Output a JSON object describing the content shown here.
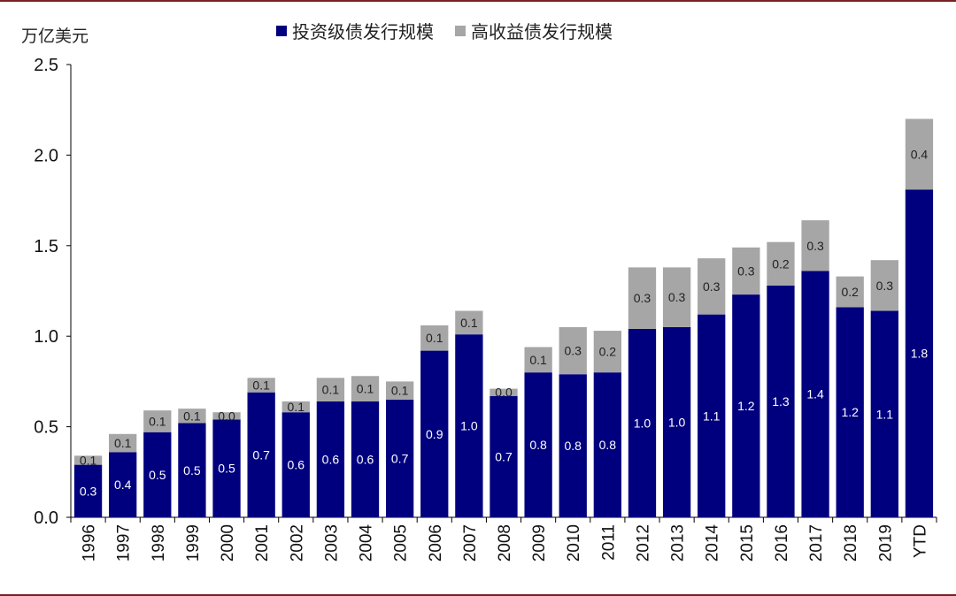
{
  "chart_data": {
    "type": "bar",
    "stacked": true,
    "unit_label": "万亿美元",
    "categories": [
      "1996",
      "1997",
      "1998",
      "1999",
      "2000",
      "2001",
      "2002",
      "2003",
      "2004",
      "2005",
      "2006",
      "2007",
      "2008",
      "2009",
      "2010",
      "2011",
      "2012",
      "2013",
      "2014",
      "2015",
      "2016",
      "2017",
      "2018",
      "2019",
      "YTD"
    ],
    "series": [
      {
        "name": "投资级债发行规模",
        "color": "#00007f",
        "values": [
          0.29,
          0.36,
          0.47,
          0.52,
          0.54,
          0.69,
          0.58,
          0.64,
          0.64,
          0.65,
          0.92,
          1.01,
          0.67,
          0.8,
          0.79,
          0.8,
          1.04,
          1.05,
          1.12,
          1.23,
          1.28,
          1.36,
          1.16,
          1.14,
          1.81
        ],
        "labels": [
          "0.3",
          "0.4",
          "0.5",
          "0.5",
          "0.5",
          "0.7",
          "0.6",
          "0.6",
          "0.6",
          "0.7",
          "0.9",
          "1.0",
          "0.7",
          "0.8",
          "0.8",
          "0.8",
          "1.0",
          "1.0",
          "1.1",
          "1.2",
          "1.3",
          "1.4",
          "1.2",
          "1.1",
          "1.8"
        ]
      },
      {
        "name": "高收益债发行规模",
        "color": "#a6a6a6",
        "values": [
          0.05,
          0.1,
          0.12,
          0.08,
          0.04,
          0.08,
          0.06,
          0.13,
          0.14,
          0.1,
          0.14,
          0.13,
          0.04,
          0.14,
          0.26,
          0.23,
          0.34,
          0.33,
          0.31,
          0.26,
          0.24,
          0.28,
          0.17,
          0.28,
          0.39
        ],
        "labels": [
          "0.1",
          "0.1",
          "0.1",
          "0.1",
          "0.0",
          "0.1",
          "0.1",
          "0.1",
          "0.1",
          "0.1",
          "0.1",
          "0.1",
          "0.0",
          "0.1",
          "0.3",
          "0.2",
          "0.3",
          "0.3",
          "0.3",
          "0.3",
          "0.2",
          "0.3",
          "0.2",
          "0.3",
          "0.4"
        ]
      }
    ],
    "ylim": [
      0,
      2.5
    ],
    "yticks": [
      "0.0",
      "0.5",
      "1.0",
      "1.5",
      "2.0",
      "2.5"
    ],
    "grid": false,
    "legend": "top"
  }
}
